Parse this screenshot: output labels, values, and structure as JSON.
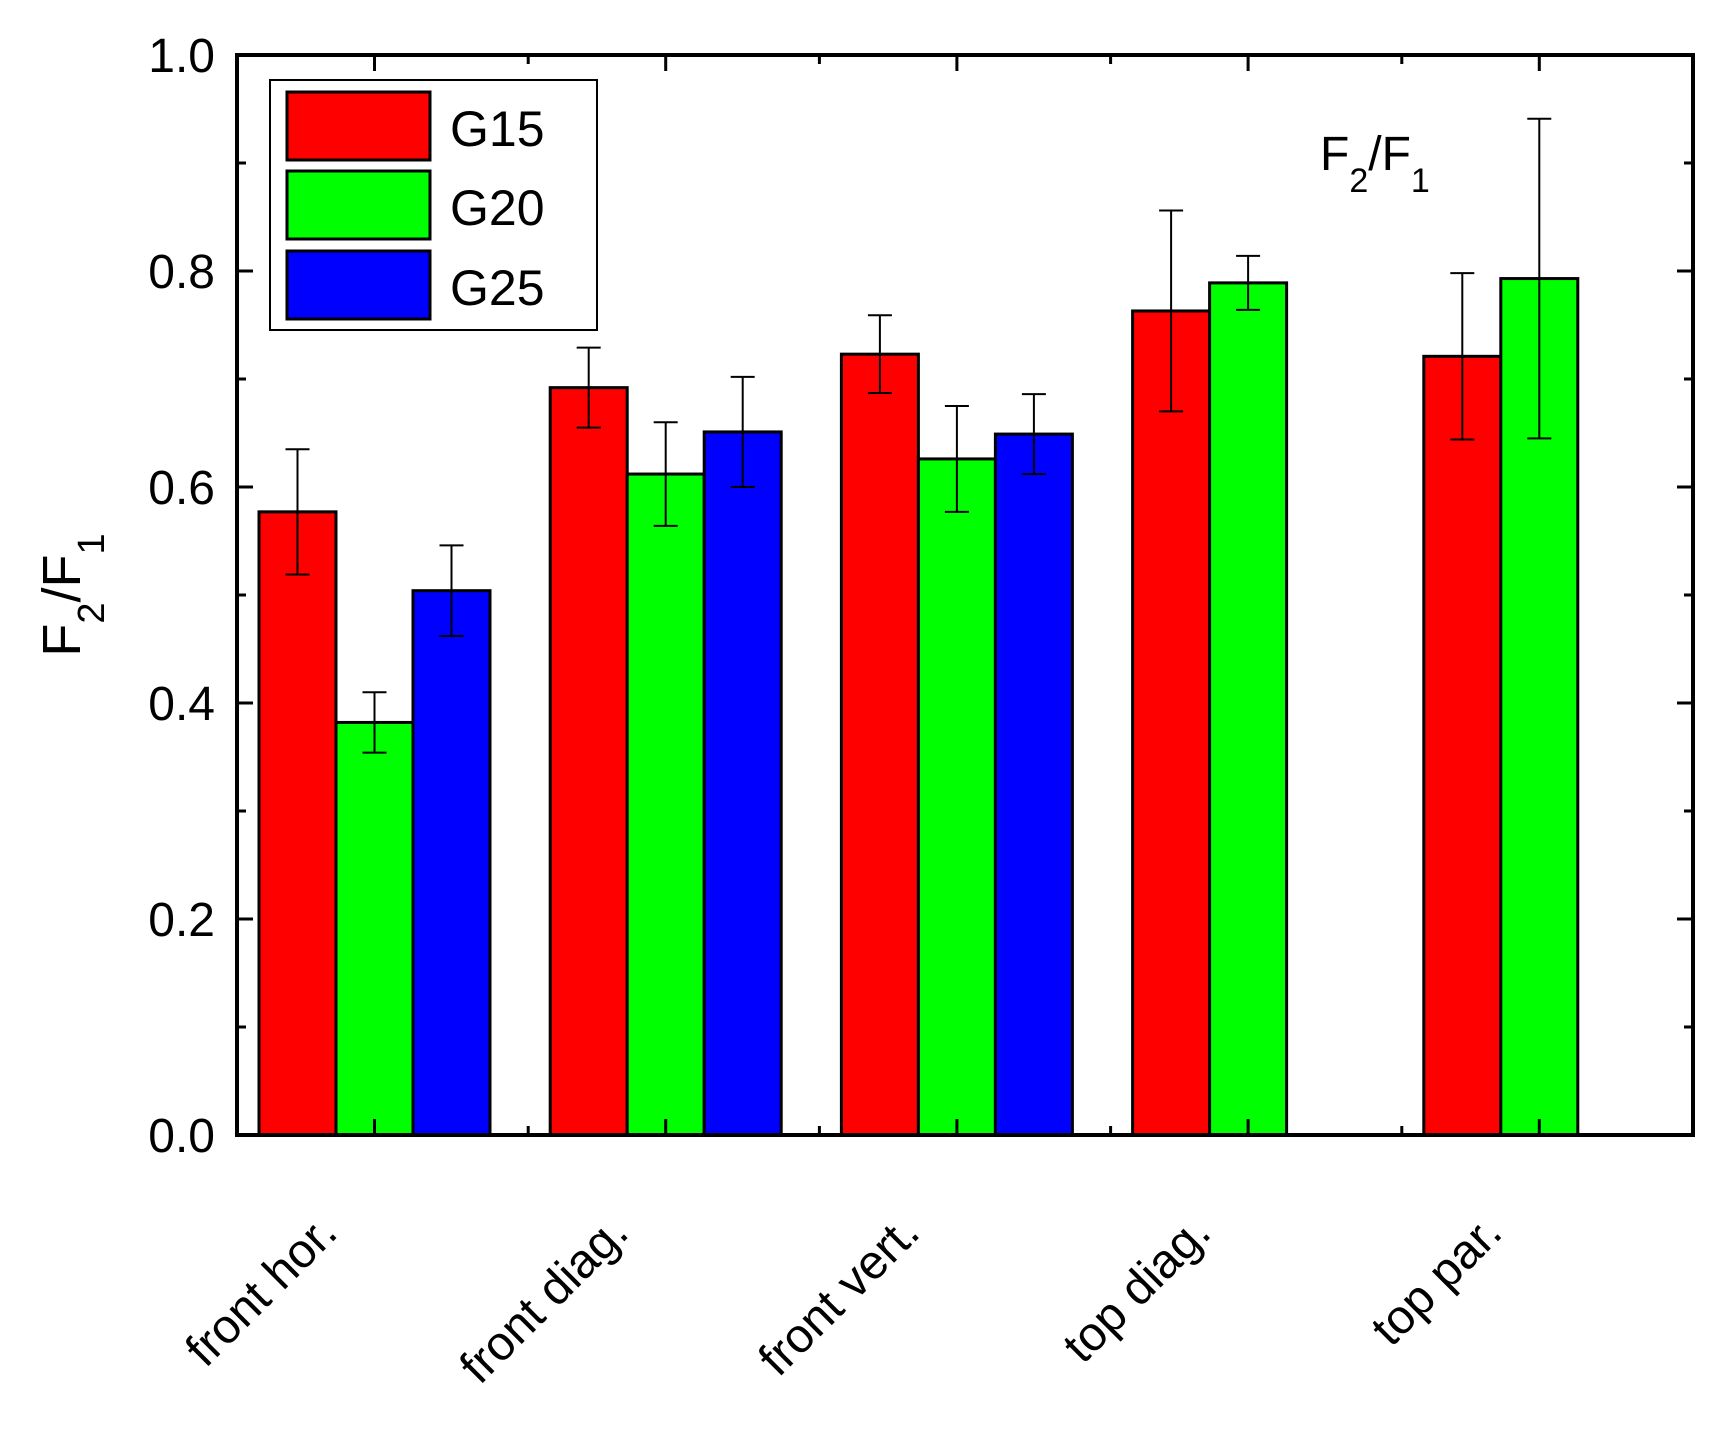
{
  "chart_data": {
    "type": "bar",
    "title": "",
    "xlabel": "",
    "ylabel": {
      "main_1": "F",
      "sub_1": "2",
      "slash": "/",
      "main_2": "F",
      "sub_2": "1"
    },
    "annotation": {
      "main_1": "F",
      "sub_1": "2",
      "slash": "/",
      "main_2": "F",
      "sub_2": "1"
    },
    "categories": [
      "front hor.",
      "front diag.",
      "front vert.",
      "top diag.",
      "top par."
    ],
    "ylim": [
      0.0,
      1.0
    ],
    "yticks": [
      "0.0",
      "0.2",
      "0.4",
      "0.6",
      "0.8",
      "1.0"
    ],
    "legend_position": "top-left",
    "series": [
      {
        "name": "G15",
        "color": "#ff0000",
        "values": [
          0.577,
          0.692,
          0.723,
          0.763,
          0.721
        ],
        "errors": [
          0.058,
          0.037,
          0.036,
          0.093,
          0.077
        ]
      },
      {
        "name": "G20",
        "color": "#00ff00",
        "values": [
          0.382,
          0.612,
          0.626,
          0.789,
          0.793
        ],
        "errors": [
          0.028,
          0.048,
          0.049,
          0.025,
          0.148
        ]
      },
      {
        "name": "G25",
        "color": "#0000ff",
        "values": [
          0.504,
          0.651,
          0.649,
          null,
          null
        ],
        "errors": [
          0.042,
          0.051,
          0.037,
          null,
          null
        ]
      }
    ]
  }
}
